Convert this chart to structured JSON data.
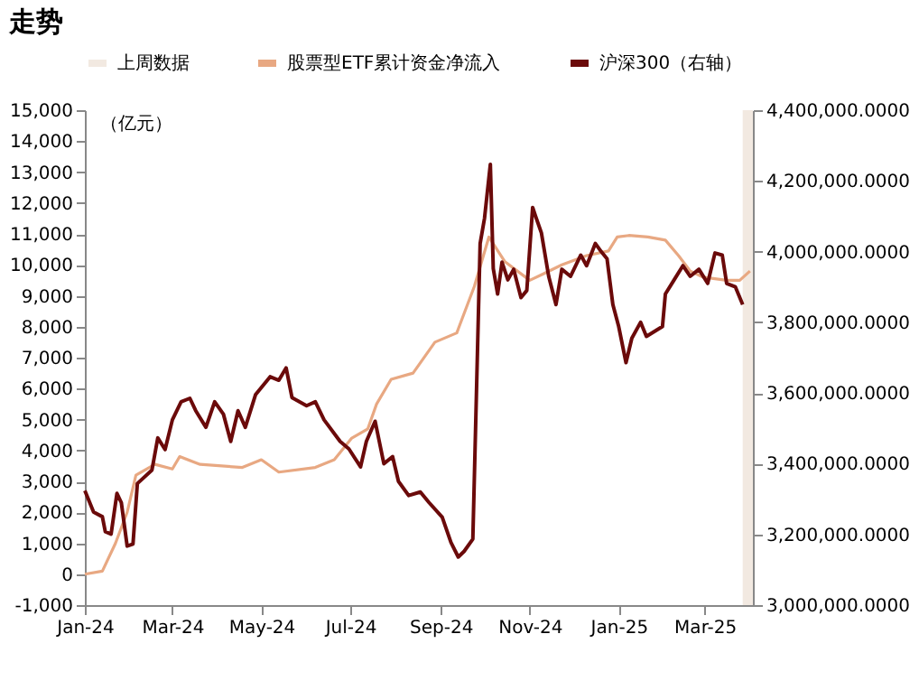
{
  "chart_data": {
    "type": "line",
    "title": "走势",
    "ylabel": "（亿元）",
    "legend": "top",
    "xlim": [
      "2024-01-01",
      "2025-04-03"
    ],
    "xticks": [
      {
        "value": "2024-01-01",
        "label": "Jan-24"
      },
      {
        "value": "2024-03-01",
        "label": "Mar-24"
      },
      {
        "value": "2024-05-01",
        "label": "May-24"
      },
      {
        "value": "2024-07-01",
        "label": "Jul-24"
      },
      {
        "value": "2024-09-01",
        "label": "Sep-24"
      },
      {
        "value": "2024-11-01",
        "label": "Nov-24"
      },
      {
        "value": "2025-01-01",
        "label": "Jan-25"
      },
      {
        "value": "2025-03-01",
        "label": "Mar-25"
      }
    ],
    "ylim": [
      -1000,
      15000
    ],
    "yticks": [
      {
        "value": -1000,
        "label": "-1,000"
      },
      0,
      {
        "value": 1000,
        "label": "1,000"
      },
      {
        "value": 2000,
        "label": "2,000"
      },
      {
        "value": 3000,
        "label": "3,000"
      },
      {
        "value": 4000,
        "label": "4,000"
      },
      {
        "value": 5000,
        "label": "5,000"
      },
      {
        "value": 6000,
        "label": "6,000"
      },
      {
        "value": 7000,
        "label": "7,000"
      },
      {
        "value": 8000,
        "label": "8,000"
      },
      {
        "value": 9000,
        "label": "9,000"
      },
      {
        "value": 10000,
        "label": "10,000"
      },
      {
        "value": 11000,
        "label": "11,000"
      },
      {
        "value": 12000,
        "label": "12,000"
      },
      {
        "value": 13000,
        "label": "13,000"
      },
      {
        "value": 14000,
        "label": "14,000"
      },
      {
        "value": 15000,
        "label": "15,000"
      }
    ],
    "y2lim": [
      3000000,
      4400000
    ],
    "y2ticks": [
      {
        "value": 3000000,
        "label": "3,000,000.0000"
      },
      {
        "value": 3200000,
        "label": "3,200,000.0000"
      },
      {
        "value": 3400000,
        "label": "3,400,000.0000"
      },
      {
        "value": 3600000,
        "label": "3,600,000.0000"
      },
      {
        "value": 3800000,
        "label": "3,800,000.0000"
      },
      {
        "value": 4000000,
        "label": "4,000,000.0000"
      },
      {
        "value": 4200000,
        "label": "4,200,000.0000"
      },
      {
        "value": 4400000,
        "label": "4,400,000.0000"
      }
    ],
    "grid": false,
    "bands": [
      {
        "axis": "x",
        "from": "2025-03-27",
        "to": "2025-04-03",
        "label": "上周数据",
        "color": "#f2e9e1"
      }
    ],
    "series": [
      {
        "name": "股票型ETF累计资金净流入",
        "color": "#e8a882",
        "x": [
          "2024-01-01",
          "2024-01-13",
          "2024-01-22",
          "2024-01-30",
          "2024-02-05",
          "2024-02-18",
          "2024-03-01",
          "2024-03-06",
          "2024-03-20",
          "2024-04-18",
          "2024-05-01",
          "2024-05-13",
          "2024-06-07",
          "2024-06-20",
          "2024-07-02",
          "2024-07-13",
          "2024-07-19",
          "2024-07-29",
          "2024-08-13",
          "2024-08-28",
          "2024-09-12",
          "2024-09-24",
          "2024-10-04",
          "2024-10-15",
          "2024-11-01",
          "2024-11-10",
          "2024-11-23",
          "2024-12-10",
          "2024-12-25",
          "2024-12-31",
          "2025-01-08",
          "2025-01-21",
          "2025-02-02",
          "2025-02-11",
          "2025-02-19",
          "2025-02-28",
          "2025-03-16",
          "2025-03-25",
          "2025-04-01"
        ],
        "values": [
          0,
          100,
          1000,
          2000,
          3200,
          3550,
          3400,
          3800,
          3550,
          3450,
          3700,
          3300,
          3450,
          3700,
          4400,
          4700,
          5500,
          6300,
          6500,
          7500,
          7800,
          9300,
          10900,
          10100,
          9500,
          9700,
          10000,
          10300,
          10450,
          10900,
          10950,
          10900,
          10800,
          10300,
          9800,
          9600,
          9500,
          9500,
          9800
        ]
      },
      {
        "name": "沪深300（右轴）",
        "color": "#6b0a0a",
        "axis": "y2",
        "x": [
          "2024-01-01",
          "2024-01-07",
          "2024-01-13",
          "2024-01-15",
          "2024-01-19",
          "2024-01-23",
          "2024-01-26",
          "2024-01-30",
          "2024-02-03",
          "2024-02-06",
          "2024-02-16",
          "2024-02-20",
          "2024-02-25",
          "2024-03-01",
          "2024-03-07",
          "2024-03-13",
          "2024-03-17",
          "2024-03-24",
          "2024-03-30",
          "2024-04-05",
          "2024-04-10",
          "2024-04-15",
          "2024-04-20",
          "2024-04-27",
          "2024-05-07",
          "2024-05-13",
          "2024-05-18",
          "2024-05-22",
          "2024-06-01",
          "2024-06-07",
          "2024-06-13",
          "2024-06-24",
          "2024-06-30",
          "2024-07-08",
          "2024-07-12",
          "2024-07-18",
          "2024-07-24",
          "2024-07-30",
          "2024-08-03",
          "2024-08-10",
          "2024-08-18",
          "2024-08-24",
          "2024-09-02",
          "2024-09-08",
          "2024-09-13",
          "2024-09-17",
          "2024-09-23",
          "2024-09-28",
          "2024-10-01",
          "2024-10-05",
          "2024-10-07",
          "2024-10-10",
          "2024-10-13",
          "2024-10-17",
          "2024-10-21",
          "2024-10-26",
          "2024-10-30",
          "2024-11-03",
          "2024-11-05",
          "2024-11-09",
          "2024-11-14",
          "2024-11-19",
          "2024-11-23",
          "2024-11-29",
          "2024-12-06",
          "2024-12-10",
          "2024-12-16",
          "2024-12-20",
          "2024-12-24",
          "2024-12-28",
          "2025-01-01",
          "2025-01-06",
          "2025-01-10",
          "2025-01-16",
          "2025-01-20",
          "2025-01-31",
          "2025-02-02",
          "2025-02-08",
          "2025-02-14",
          "2025-02-19",
          "2025-02-25",
          "2025-03-03",
          "2025-03-08",
          "2025-03-13",
          "2025-03-16",
          "2025-03-22",
          "2025-03-27"
        ],
        "values": [
          3324000,
          3263000,
          3250000,
          3208000,
          3201000,
          3316000,
          3290000,
          3167000,
          3173000,
          3344000,
          3382000,
          3473000,
          3440000,
          3524000,
          3575000,
          3585000,
          3550000,
          3503000,
          3575000,
          3540000,
          3463000,
          3550000,
          3503000,
          3595000,
          3646000,
          3636000,
          3671000,
          3587000,
          3564000,
          3575000,
          3524000,
          3463000,
          3442000,
          3391000,
          3463000,
          3520000,
          3400000,
          3420000,
          3350000,
          3310000,
          3320000,
          3290000,
          3249000,
          3177000,
          3136000,
          3152000,
          3187000,
          4023000,
          4094000,
          4247000,
          3952000,
          3880000,
          3970000,
          3920000,
          3950000,
          3870000,
          3890000,
          4125000,
          4100000,
          4053000,
          3930000,
          3850000,
          3950000,
          3930000,
          3990000,
          3960000,
          4023000,
          4000000,
          3980000,
          3850000,
          3788000,
          3686000,
          3755000,
          3800000,
          3760000,
          3788000,
          3880000,
          3920000,
          3960000,
          3930000,
          3950000,
          3910000,
          3996000,
          3990000,
          3910000,
          3900000,
          3850000
        ]
      }
    ]
  }
}
